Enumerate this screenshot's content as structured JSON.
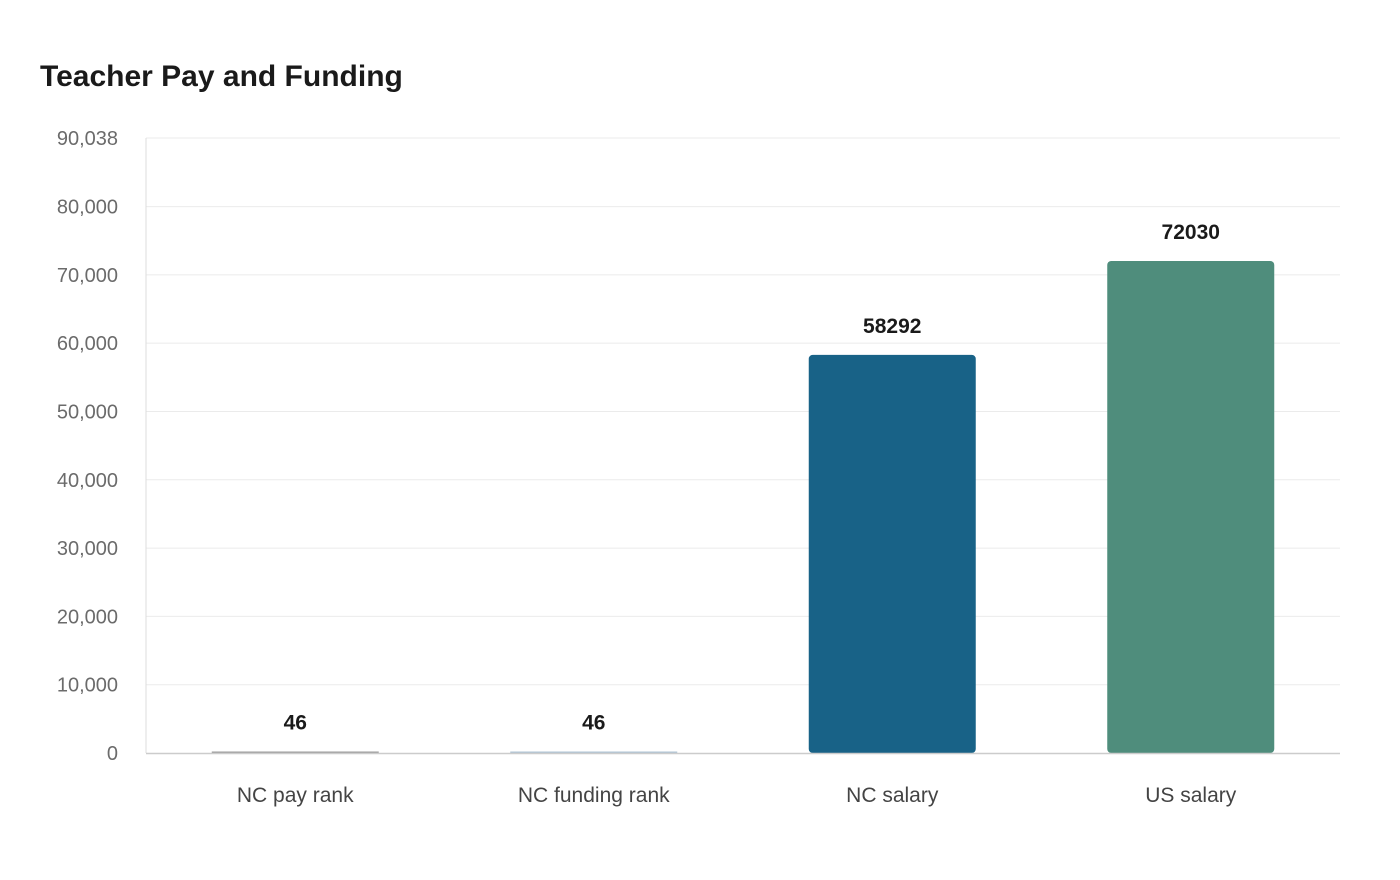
{
  "chart_data": {
    "type": "bar",
    "title": "Teacher Pay and Funding",
    "xlabel": "",
    "ylabel": "",
    "categories": [
      "NC pay rank",
      "NC funding rank",
      "NC salary",
      "US salary"
    ],
    "values": [
      46,
      46,
      58292,
      72030
    ],
    "data_labels": [
      "46",
      "46",
      "58292",
      "72030"
    ],
    "colors": [
      "#9e9e9e",
      "#b0c4d4",
      "#186287",
      "#4f8d7c"
    ],
    "ylim": [
      0,
      90038
    ],
    "yticks": [
      0,
      10000,
      20000,
      30000,
      40000,
      50000,
      60000,
      70000,
      80000,
      90038
    ],
    "ytick_labels": [
      "0",
      "10,000",
      "20,000",
      "30,000",
      "40,000",
      "50,000",
      "60,000",
      "70,000",
      "80,000",
      "90,038"
    ],
    "grid": true,
    "legend": "none"
  }
}
